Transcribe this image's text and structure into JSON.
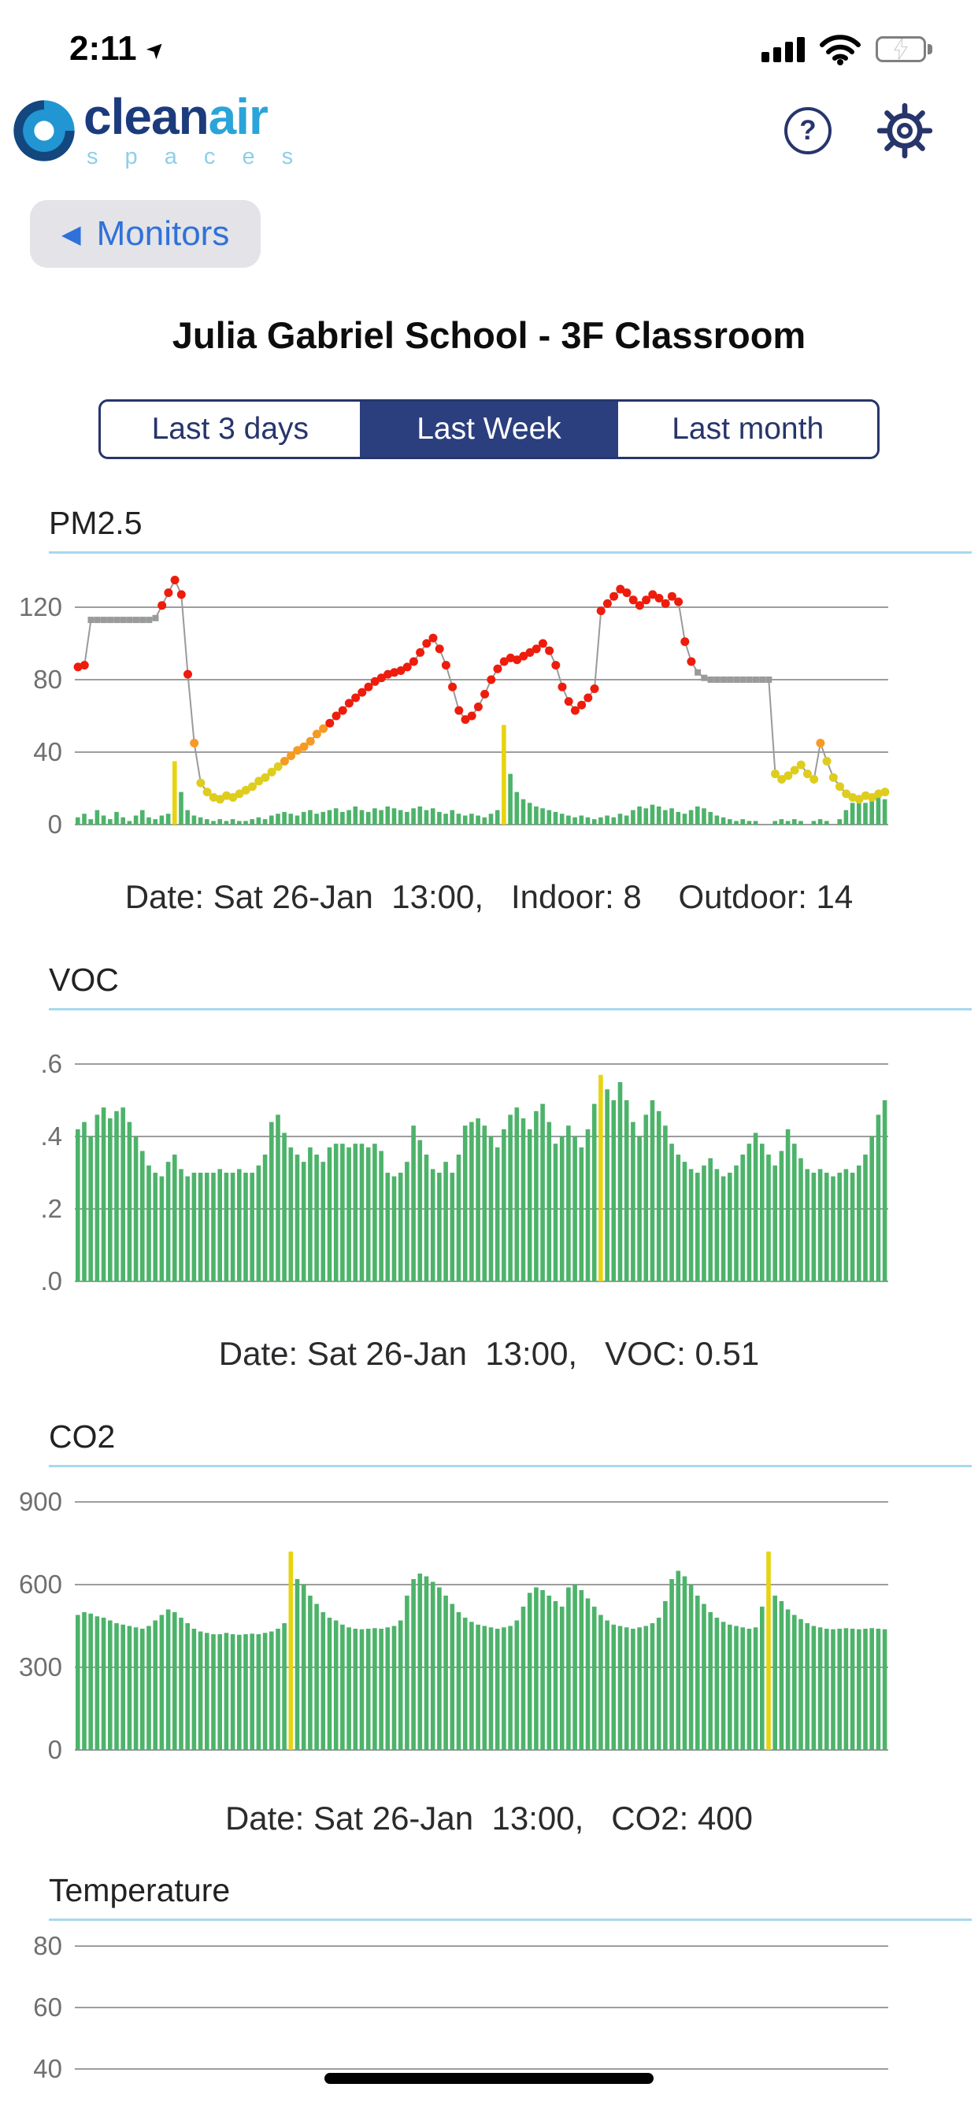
{
  "status_bar": {
    "time": "2:11",
    "icons": [
      "location-arrow",
      "cellular-signal",
      "wifi",
      "battery-charging"
    ]
  },
  "icons": {
    "back_arrow": "◀",
    "help": "?",
    "location_arrow": "➤"
  },
  "header": {
    "logo_primary": "clean",
    "logo_secondary": "air",
    "logo_subtitle": "s p a c e s"
  },
  "nav": {
    "back_label": "Monitors"
  },
  "page_title": "Julia Gabriel School - 3F Classroom",
  "tabs": [
    {
      "label": "Last 3 days",
      "selected": false
    },
    {
      "label": "Last Week",
      "selected": true
    },
    {
      "label": "Last month",
      "selected": false
    }
  ],
  "sections": {
    "pm25": {
      "label": "PM2.5",
      "caption": "Date: Sat 26-Jan  13:00,   Indoor: 8    Outdoor: 14"
    },
    "voc": {
      "label": "VOC",
      "caption": "Date: Sat 26-Jan  13:00,   VOC: 0.51"
    },
    "co2": {
      "label": "CO2",
      "caption": "Date: Sat 26-Jan  13:00,   CO2: 400"
    },
    "temperature": {
      "label": "Temperature"
    }
  },
  "colors": {
    "accent_navy": "#2B3F7E",
    "tab_border_navy": "#27356B",
    "link_blue": "#2F71D9",
    "logo_dark_blue": "#1B3B7C",
    "logo_light_blue": "#2AA4D9",
    "logo_subtitle_blue": "#8FCFE8",
    "section_rule_blue": "#A7D9EE",
    "battery_green": "#34C759",
    "chart": {
      "grid": "#8F8F8F",
      "axis_text": "#6F6F6F",
      "bar_green": "#4DB36A",
      "bar_yellow": "#E8D40E",
      "line_gray": "#9A9A9A",
      "point_gray": "#9A9A9A",
      "point_yellow": "#DECD1E",
      "point_orange": "#F59A23",
      "point_red": "#EE1C0C"
    }
  },
  "chart_data": [
    {
      "id": "pm25",
      "type": "line+bar",
      "title": "PM2.5",
      "x_range": "last 7 days",
      "ylim": [
        0,
        140
      ],
      "yticks": [
        {
          "v": 0,
          "label": "0"
        },
        {
          "v": 40,
          "label": "40"
        },
        {
          "v": 80,
          "label": "80"
        },
        {
          "v": 120,
          "label": "120"
        }
      ],
      "line": {
        "name": "Outdoor PM2.5",
        "values": [
          87,
          88,
          113,
          113,
          113,
          113,
          113,
          113,
          113,
          113,
          113,
          113,
          114,
          121,
          128,
          135,
          127,
          83,
          45,
          23,
          18,
          15,
          14,
          16,
          15,
          17,
          19,
          21,
          24,
          26,
          29,
          32,
          35,
          38,
          41,
          43,
          46,
          50,
          53,
          56,
          60,
          63,
          67,
          70,
          73,
          76,
          79,
          81,
          83,
          84,
          85,
          87,
          90,
          95,
          100,
          103,
          97,
          88,
          76,
          63,
          58,
          60,
          65,
          72,
          80,
          86,
          90,
          92,
          91,
          93,
          95,
          97,
          100,
          96,
          88,
          76,
          68,
          63,
          66,
          70,
          75,
          118,
          122,
          126,
          130,
          128,
          124,
          121,
          124,
          127,
          125,
          122,
          126,
          123,
          101,
          90,
          84,
          81,
          80,
          80,
          80,
          80,
          80,
          80,
          80,
          80,
          80,
          80,
          28,
          25,
          27,
          30,
          33,
          28,
          25,
          45,
          35,
          26,
          21,
          17,
          15,
          14,
          16,
          15,
          17,
          18
        ],
        "levels": "rrgggggggggggrrrrroyyyyyyyyyyyyyooooooorrrrrrrrrrrrrrrrrrrrrrrrrrrrrrrrrrrrrrrrrrrrrrrrrrrrrrrrrggggggggggggyyyyyyyoyyyyyyyyyy"
      },
      "bars": {
        "name": "Indoor PM2.5",
        "values": [
          4,
          6,
          3,
          8,
          5,
          3,
          7,
          4,
          2,
          5,
          8,
          4,
          3,
          5,
          6,
          35,
          18,
          8,
          5,
          4,
          3,
          2,
          3,
          2,
          3,
          2,
          2,
          3,
          4,
          3,
          5,
          6,
          7,
          6,
          5,
          7,
          8,
          6,
          7,
          8,
          9,
          7,
          8,
          10,
          8,
          7,
          9,
          8,
          10,
          9,
          8,
          7,
          9,
          10,
          8,
          9,
          7,
          6,
          8,
          6,
          5,
          6,
          5,
          4,
          6,
          8,
          55,
          28,
          18,
          14,
          12,
          10,
          9,
          8,
          7,
          6,
          5,
          4,
          5,
          4,
          3,
          4,
          5,
          4,
          6,
          5,
          8,
          10,
          9,
          11,
          10,
          8,
          9,
          7,
          6,
          8,
          10,
          9,
          7,
          5,
          4,
          3,
          2,
          3,
          2,
          2,
          0,
          0,
          2,
          3,
          2,
          3,
          2,
          0,
          2,
          3,
          2,
          0,
          3,
          8,
          12,
          14,
          12,
          13,
          15,
          14
        ],
        "highlight_indices": [
          15,
          66
        ]
      },
      "selected": {
        "date": "Sat 26-Jan 13:00",
        "indoor": 8,
        "outdoor": 14
      }
    },
    {
      "id": "voc",
      "type": "bar",
      "title": "VOC",
      "x_range": "last 7 days",
      "ylim": [
        0,
        0.65
      ],
      "yticks": [
        {
          "v": 0,
          "label": ".0"
        },
        {
          "v": 0.2,
          "label": ".2"
        },
        {
          "v": 0.4,
          "label": ".4"
        },
        {
          "v": 0.6,
          "label": ".6"
        }
      ],
      "bars": {
        "name": "VOC",
        "values": [
          0.42,
          0.44,
          0.4,
          0.46,
          0.48,
          0.45,
          0.47,
          0.48,
          0.44,
          0.4,
          0.36,
          0.32,
          0.3,
          0.29,
          0.33,
          0.35,
          0.31,
          0.29,
          0.3,
          0.3,
          0.3,
          0.3,
          0.31,
          0.3,
          0.3,
          0.31,
          0.3,
          0.3,
          0.32,
          0.35,
          0.44,
          0.46,
          0.41,
          0.37,
          0.35,
          0.33,
          0.37,
          0.35,
          0.33,
          0.37,
          0.38,
          0.38,
          0.37,
          0.38,
          0.38,
          0.37,
          0.38,
          0.36,
          0.3,
          0.29,
          0.3,
          0.33,
          0.43,
          0.39,
          0.35,
          0.31,
          0.3,
          0.33,
          0.3,
          0.35,
          0.43,
          0.44,
          0.45,
          0.43,
          0.4,
          0.37,
          0.42,
          0.46,
          0.48,
          0.45,
          0.42,
          0.47,
          0.49,
          0.44,
          0.38,
          0.4,
          0.43,
          0.4,
          0.37,
          0.42,
          0.49,
          0.57,
          0.53,
          0.5,
          0.55,
          0.5,
          0.44,
          0.4,
          0.46,
          0.5,
          0.47,
          0.43,
          0.38,
          0.35,
          0.33,
          0.31,
          0.3,
          0.32,
          0.34,
          0.31,
          0.29,
          0.3,
          0.32,
          0.35,
          0.38,
          0.41,
          0.38,
          0.35,
          0.32,
          0.36,
          0.42,
          0.38,
          0.34,
          0.31,
          0.3,
          0.31,
          0.3,
          0.29,
          0.3,
          0.31,
          0.3,
          0.32,
          0.35,
          0.4,
          0.46,
          0.5
        ],
        "highlight_indices": [
          81
        ]
      },
      "selected": {
        "date": "Sat 26-Jan 13:00",
        "voc": 0.51
      }
    },
    {
      "id": "co2",
      "type": "bar",
      "title": "CO2",
      "x_range": "last 7 days",
      "ylim": [
        0,
        980
      ],
      "yticks": [
        {
          "v": 0,
          "label": "0"
        },
        {
          "v": 300,
          "label": "300"
        },
        {
          "v": 600,
          "label": "600"
        },
        {
          "v": 900,
          "label": "900"
        }
      ],
      "bars": {
        "name": "CO2",
        "values": [
          490,
          500,
          495,
          485,
          480,
          470,
          460,
          455,
          450,
          445,
          440,
          450,
          470,
          490,
          510,
          500,
          480,
          460,
          440,
          430,
          425,
          420,
          420,
          425,
          420,
          418,
          420,
          422,
          420,
          425,
          430,
          440,
          460,
          720,
          620,
          600,
          560,
          530,
          500,
          480,
          470,
          455,
          445,
          440,
          438,
          440,
          442,
          440,
          445,
          450,
          470,
          560,
          620,
          640,
          630,
          610,
          590,
          560,
          530,
          500,
          480,
          465,
          455,
          450,
          445,
          440,
          445,
          450,
          470,
          520,
          570,
          590,
          580,
          560,
          540,
          520,
          590,
          600,
          580,
          550,
          520,
          490,
          470,
          455,
          450,
          445,
          440,
          445,
          450,
          460,
          480,
          540,
          620,
          650,
          630,
          600,
          560,
          530,
          500,
          480,
          465,
          455,
          450,
          445,
          440,
          445,
          520,
          720,
          560,
          540,
          510,
          490,
          475,
          460,
          450,
          445,
          440,
          438,
          440,
          442,
          440,
          438,
          440,
          442,
          440,
          438
        ],
        "highlight_indices": [
          33,
          107
        ]
      },
      "selected": {
        "date": "Sat 26-Jan 13:00",
        "co2": 400
      }
    },
    {
      "id": "temperature",
      "type": "line",
      "title": "Temperature",
      "x_range": "last 7 days",
      "ylim": [
        35,
        85
      ],
      "yticks": [
        {
          "v": 40,
          "label": "40"
        },
        {
          "v": 60,
          "label": "60"
        },
        {
          "v": 80,
          "label": "80"
        }
      ]
    }
  ]
}
